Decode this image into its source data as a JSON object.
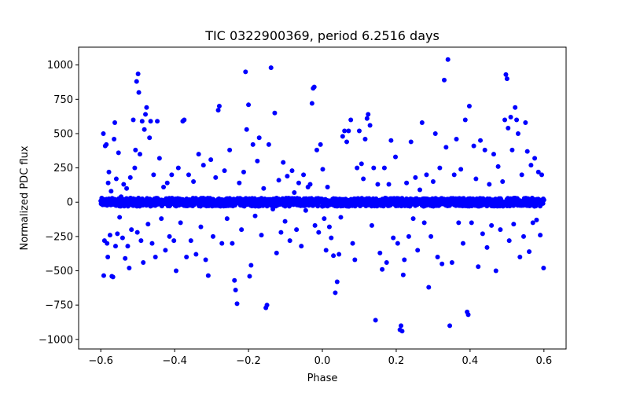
{
  "chart_data": {
    "type": "scatter",
    "title": "TIC 0322900369, period 6.2516 days",
    "xlabel": "Phase",
    "ylabel": "Normalized PDC flux",
    "xlim": [
      -0.66,
      0.66
    ],
    "ylim": [
      -1070,
      1130
    ],
    "xticks": [
      -0.6,
      -0.4,
      -0.2,
      0.0,
      0.2,
      0.4,
      0.6
    ],
    "xtick_labels": [
      "−0.6",
      "−0.4",
      "−0.2",
      "0.0",
      "0.2",
      "0.4",
      "0.6"
    ],
    "yticks": [
      -1000,
      -750,
      -500,
      -250,
      0,
      250,
      500,
      750,
      1000
    ],
    "ytick_labels": [
      "−1000",
      "−750",
      "−500",
      "−250",
      "0",
      "250",
      "500",
      "750",
      "1000"
    ],
    "grid": false,
    "marker_color": "#0000ff",
    "series": [
      {
        "name": "PDC flux",
        "points": [
          [
            -0.597,
            10
          ],
          [
            -0.593,
            500
          ],
          [
            -0.592,
            -535
          ],
          [
            -0.59,
            -280
          ],
          [
            -0.588,
            410
          ],
          [
            -0.585,
            420
          ],
          [
            -0.583,
            -300
          ],
          [
            -0.581,
            -400
          ],
          [
            -0.58,
            140
          ],
          [
            -0.578,
            220
          ],
          [
            -0.575,
            -240
          ],
          [
            -0.572,
            80
          ],
          [
            -0.57,
            -540
          ],
          [
            -0.567,
            -545
          ],
          [
            -0.564,
            460
          ],
          [
            -0.562,
            580
          ],
          [
            -0.56,
            -320
          ],
          [
            -0.558,
            170
          ],
          [
            -0.555,
            -230
          ],
          [
            -0.552,
            360
          ],
          [
            -0.549,
            -110
          ],
          [
            -0.545,
            40
          ],
          [
            -0.541,
            -260
          ],
          [
            -0.538,
            130
          ],
          [
            -0.534,
            -410
          ],
          [
            -0.53,
            100
          ],
          [
            -0.527,
            -320
          ],
          [
            -0.523,
            -480
          ],
          [
            -0.52,
            180
          ],
          [
            -0.517,
            -200
          ],
          [
            -0.512,
            600
          ],
          [
            -0.508,
            250
          ],
          [
            -0.506,
            380
          ],
          [
            -0.503,
            880
          ],
          [
            -0.501,
            -220
          ],
          [
            -0.499,
            935
          ],
          [
            -0.497,
            800
          ],
          [
            -0.494,
            350
          ],
          [
            -0.491,
            -280
          ],
          [
            -0.488,
            590
          ],
          [
            -0.485,
            -440
          ],
          [
            -0.482,
            530
          ],
          [
            -0.479,
            640
          ],
          [
            -0.476,
            690
          ],
          [
            -0.472,
            -160
          ],
          [
            -0.468,
            470
          ],
          [
            -0.465,
            590
          ],
          [
            -0.461,
            -300
          ],
          [
            -0.457,
            200
          ],
          [
            -0.452,
            -400
          ],
          [
            -0.447,
            590
          ],
          [
            -0.441,
            320
          ],
          [
            -0.436,
            -120
          ],
          [
            -0.43,
            110
          ],
          [
            -0.425,
            -350
          ],
          [
            -0.42,
            140
          ],
          [
            -0.414,
            -250
          ],
          [
            -0.408,
            200
          ],
          [
            -0.402,
            -280
          ],
          [
            -0.396,
            -500
          ],
          [
            -0.39,
            250
          ],
          [
            -0.384,
            -150
          ],
          [
            -0.378,
            590
          ],
          [
            -0.374,
            600
          ],
          [
            -0.368,
            -400
          ],
          [
            -0.362,
            200
          ],
          [
            -0.356,
            -280
          ],
          [
            -0.349,
            150
          ],
          [
            -0.342,
            -380
          ],
          [
            -0.335,
            350
          ],
          [
            -0.329,
            -180
          ],
          [
            -0.322,
            270
          ],
          [
            -0.316,
            -420
          ],
          [
            -0.309,
            -535
          ],
          [
            -0.302,
            310
          ],
          [
            -0.296,
            -250
          ],
          [
            -0.289,
            180
          ],
          [
            -0.282,
            670
          ],
          [
            -0.279,
            700
          ],
          [
            -0.272,
            -300
          ],
          [
            -0.265,
            230
          ],
          [
            -0.258,
            -120
          ],
          [
            -0.251,
            380
          ],
          [
            -0.244,
            -300
          ],
          [
            -0.238,
            -570
          ],
          [
            -0.235,
            -640
          ],
          [
            -0.231,
            -740
          ],
          [
            -0.225,
            140
          ],
          [
            -0.219,
            -200
          ],
          [
            -0.213,
            220
          ],
          [
            -0.208,
            950
          ],
          [
            -0.205,
            530
          ],
          [
            -0.2,
            710
          ],
          [
            -0.197,
            -540
          ],
          [
            -0.193,
            -460
          ],
          [
            -0.188,
            420
          ],
          [
            -0.182,
            -100
          ],
          [
            -0.176,
            300
          ],
          [
            -0.171,
            470
          ],
          [
            -0.165,
            -240
          ],
          [
            -0.159,
            100
          ],
          [
            -0.153,
            -770
          ],
          [
            -0.15,
            -750
          ],
          [
            -0.145,
            420
          ],
          [
            -0.139,
            980
          ],
          [
            -0.134,
            -50
          ],
          [
            -0.129,
            650
          ],
          [
            -0.124,
            -370
          ],
          [
            -0.118,
            160
          ],
          [
            -0.112,
            -220
          ],
          [
            -0.106,
            290
          ],
          [
            -0.101,
            -140
          ],
          [
            -0.095,
            190
          ],
          [
            -0.088,
            -280
          ],
          [
            -0.082,
            230
          ],
          [
            -0.076,
            70
          ],
          [
            -0.07,
            -200
          ],
          [
            -0.064,
            140
          ],
          [
            -0.057,
            -320
          ],
          [
            -0.051,
            200
          ],
          [
            -0.045,
            -60
          ],
          [
            -0.039,
            110
          ],
          [
            -0.033,
            130
          ],
          [
            -0.028,
            720
          ],
          [
            -0.025,
            830
          ],
          [
            -0.022,
            840
          ],
          [
            -0.02,
            -170
          ],
          [
            -0.015,
            380
          ],
          [
            -0.01,
            -220
          ],
          [
            -0.005,
            420
          ],
          [
            0.001,
            240
          ],
          [
            0.005,
            -120
          ],
          [
            0.01,
            -350
          ],
          [
            0.014,
            110
          ],
          [
            0.019,
            -180
          ],
          [
            0.024,
            -260
          ],
          [
            0.03,
            -390
          ],
          [
            0.035,
            -660
          ],
          [
            0.04,
            -580
          ],
          [
            0.045,
            -380
          ],
          [
            0.05,
            -110
          ],
          [
            0.055,
            480
          ],
          [
            0.06,
            520
          ],
          [
            0.066,
            440
          ],
          [
            0.071,
            520
          ],
          [
            0.077,
            600
          ],
          [
            0.082,
            -300
          ],
          [
            0.088,
            -420
          ],
          [
            0.094,
            250
          ],
          [
            0.1,
            520
          ],
          [
            0.106,
            280
          ],
          [
            0.111,
            170
          ],
          [
            0.116,
            460
          ],
          [
            0.121,
            610
          ],
          [
            0.124,
            640
          ],
          [
            0.129,
            560
          ],
          [
            0.134,
            -170
          ],
          [
            0.139,
            250
          ],
          [
            0.144,
            -860
          ],
          [
            0.15,
            130
          ],
          [
            0.156,
            -370
          ],
          [
            0.162,
            -490
          ],
          [
            0.168,
            250
          ],
          [
            0.174,
            -440
          ],
          [
            0.18,
            130
          ],
          [
            0.186,
            450
          ],
          [
            0.192,
            -260
          ],
          [
            0.198,
            330
          ],
          [
            0.204,
            -300
          ],
          [
            0.21,
            -930
          ],
          [
            0.213,
            -900
          ],
          [
            0.216,
            -940
          ],
          [
            0.219,
            -530
          ],
          [
            0.222,
            -420
          ],
          [
            0.228,
            140
          ],
          [
            0.234,
            -250
          ],
          [
            0.24,
            440
          ],
          [
            0.246,
            -120
          ],
          [
            0.252,
            180
          ],
          [
            0.258,
            -350
          ],
          [
            0.264,
            90
          ],
          [
            0.27,
            580
          ],
          [
            0.276,
            -150
          ],
          [
            0.282,
            200
          ],
          [
            0.288,
            -620
          ],
          [
            0.294,
            -250
          ],
          [
            0.3,
            150
          ],
          [
            0.306,
            500
          ],
          [
            0.312,
            -400
          ],
          [
            0.318,
            250
          ],
          [
            0.324,
            -450
          ],
          [
            0.33,
            890
          ],
          [
            0.335,
            400
          ],
          [
            0.34,
            1040
          ],
          [
            0.345,
            -900
          ],
          [
            0.351,
            -440
          ],
          [
            0.357,
            200
          ],
          [
            0.363,
            460
          ],
          [
            0.369,
            -150
          ],
          [
            0.375,
            240
          ],
          [
            0.381,
            -300
          ],
          [
            0.387,
            600
          ],
          [
            0.392,
            -800
          ],
          [
            0.395,
            -820
          ],
          [
            0.398,
            700
          ],
          [
            0.404,
            -150
          ],
          [
            0.41,
            410
          ],
          [
            0.416,
            170
          ],
          [
            0.422,
            -470
          ],
          [
            0.428,
            450
          ],
          [
            0.434,
            -230
          ],
          [
            0.44,
            380
          ],
          [
            0.446,
            -330
          ],
          [
            0.452,
            130
          ],
          [
            0.458,
            -170
          ],
          [
            0.464,
            350
          ],
          [
            0.47,
            -500
          ],
          [
            0.476,
            260
          ],
          [
            0.482,
            -200
          ],
          [
            0.488,
            150
          ],
          [
            0.494,
            600
          ],
          [
            0.497,
            930
          ],
          [
            0.5,
            900
          ],
          [
            0.503,
            540
          ],
          [
            0.506,
            -280
          ],
          [
            0.51,
            620
          ],
          [
            0.514,
            380
          ],
          [
            0.518,
            -160
          ],
          [
            0.522,
            690
          ],
          [
            0.526,
            600
          ],
          [
            0.53,
            500
          ],
          [
            0.535,
            -400
          ],
          [
            0.54,
            200
          ],
          [
            0.545,
            -250
          ],
          [
            0.55,
            580
          ],
          [
            0.555,
            370
          ],
          [
            0.56,
            -360
          ],
          [
            0.565,
            270
          ],
          [
            0.57,
            -150
          ],
          [
            0.575,
            320
          ],
          [
            0.58,
            -130
          ],
          [
            0.585,
            220
          ],
          [
            0.59,
            -240
          ],
          [
            0.594,
            200
          ],
          [
            0.597,
            10
          ],
          [
            0.599,
            -480
          ]
        ],
        "band": {
          "x_range": [
            -0.6,
            0.6
          ],
          "y_center": 0,
          "y_halfwidth": 30,
          "point_count": 1400
        }
      }
    ]
  }
}
